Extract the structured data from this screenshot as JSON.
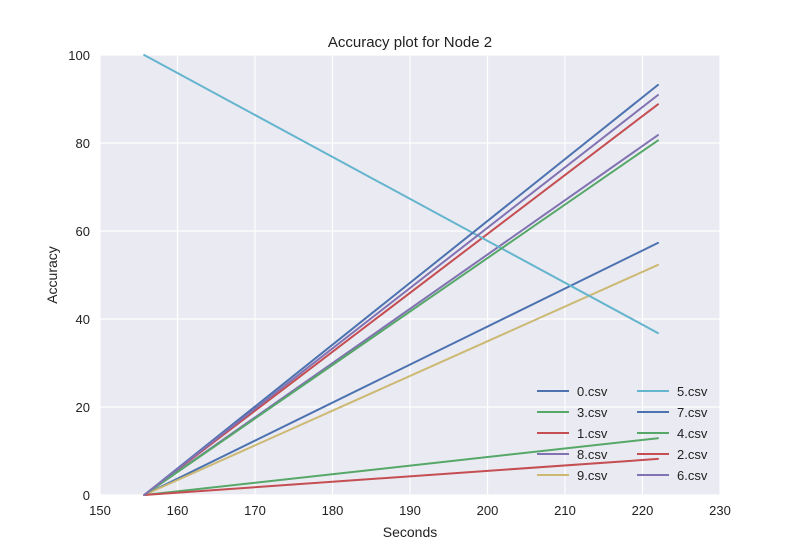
{
  "chart_data": {
    "type": "line",
    "title": "Accuracy plot for Node 2",
    "xlabel": "Seconds",
    "ylabel": "Accuracy",
    "xlim": [
      150,
      230
    ],
    "ylim": [
      0,
      100
    ],
    "xticks": [
      150,
      160,
      170,
      180,
      190,
      200,
      210,
      220,
      230
    ],
    "yticks": [
      0,
      20,
      40,
      60,
      80,
      100
    ],
    "grid": true,
    "legend_position": "lower-right",
    "legend_columns": 2,
    "series": [
      {
        "name": "0.csv",
        "color": "#4c72b0",
        "x": [
          155.7,
          222
        ],
        "y": [
          0,
          57.3
        ]
      },
      {
        "name": "3.csv",
        "color": "#55a868",
        "x": [
          155.7,
          222
        ],
        "y": [
          0,
          12.9
        ]
      },
      {
        "name": "1.csv",
        "color": "#c44e52",
        "x": [
          155.7,
          222
        ],
        "y": [
          0,
          88.8
        ]
      },
      {
        "name": "8.csv",
        "color": "#8172b2",
        "x": [
          155.7,
          222
        ],
        "y": [
          0,
          81.8
        ]
      },
      {
        "name": "9.csv",
        "color": "#ccb974",
        "x": [
          155.7,
          222
        ],
        "y": [
          0,
          52.3
        ]
      },
      {
        "name": "5.csv",
        "color": "#64b5cd",
        "x": [
          155.7,
          222
        ],
        "y": [
          100,
          36.8
        ]
      },
      {
        "name": "7.csv",
        "color": "#4c72b0",
        "x": [
          155.7,
          222
        ],
        "y": [
          0,
          93.2
        ]
      },
      {
        "name": "4.csv",
        "color": "#55a868",
        "x": [
          155.7,
          222
        ],
        "y": [
          0,
          80.6
        ]
      },
      {
        "name": "2.csv",
        "color": "#c44e52",
        "x": [
          155.7,
          222
        ],
        "y": [
          0,
          8.2
        ]
      },
      {
        "name": "6.csv",
        "color": "#8172b2",
        "x": [
          155.7,
          222
        ],
        "y": [
          0,
          90.9
        ]
      }
    ]
  },
  "colors": {
    "plot_background": "#eaeaf2",
    "grid": "#ffffff",
    "text": "#222222"
  }
}
